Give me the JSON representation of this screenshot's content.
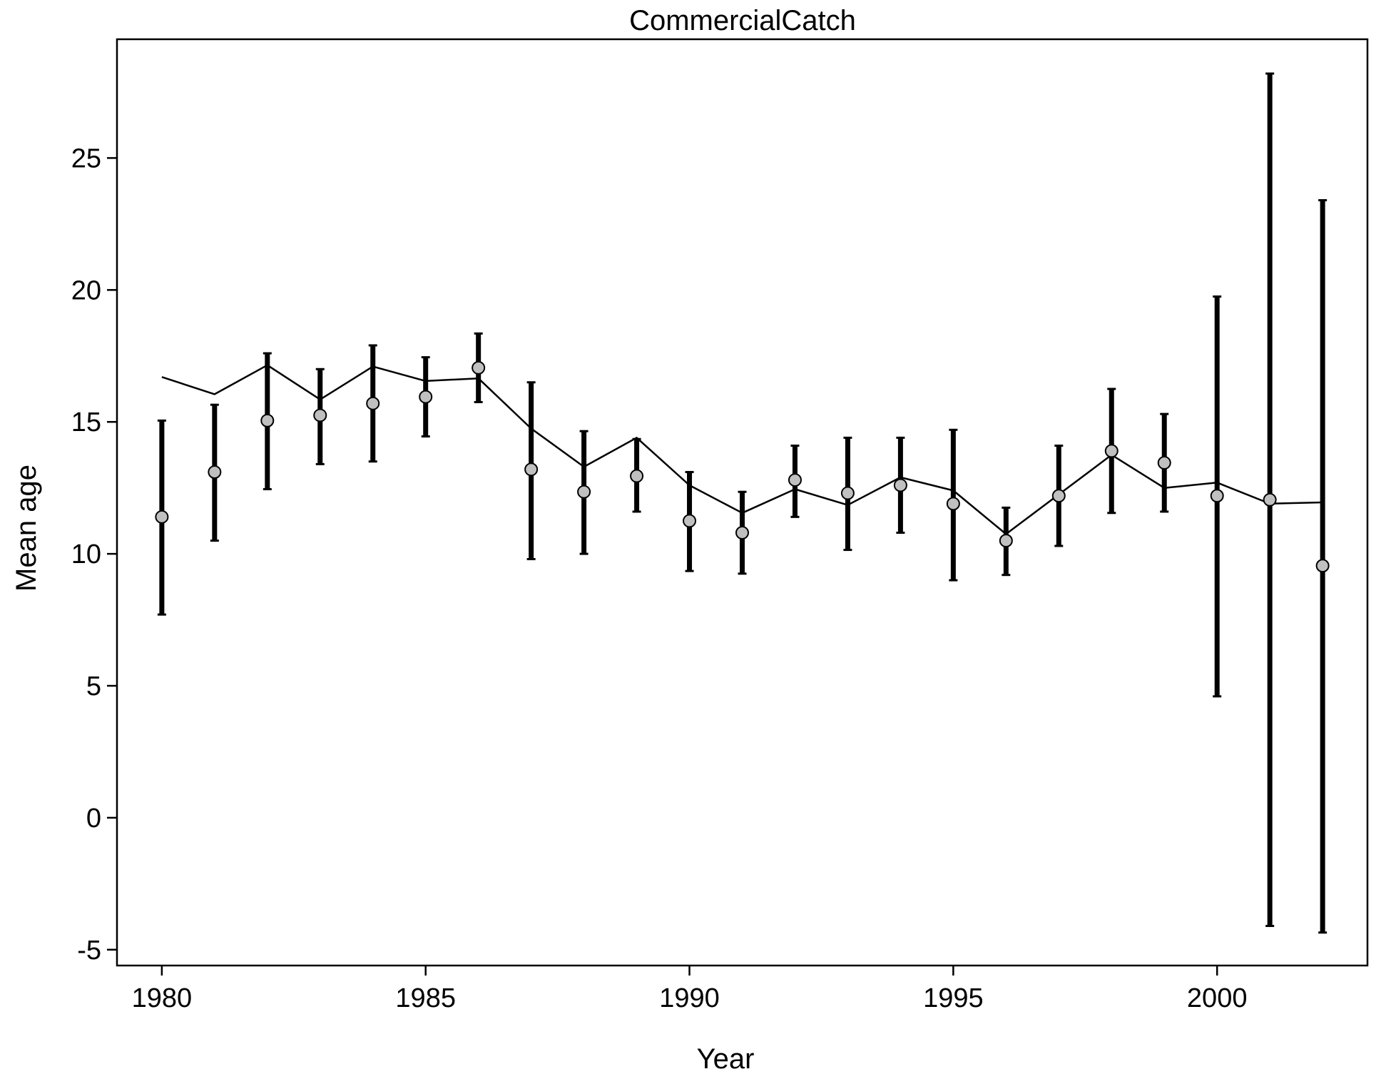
{
  "chart_data": {
    "type": "scatter",
    "title": "CommercialCatch",
    "xlabel": "Year",
    "ylabel": "Mean age",
    "xlim": [
      1979.15,
      2002.85
    ],
    "ylim": [
      -5.6,
      29.5
    ],
    "xticks": [
      1980,
      1985,
      1990,
      1995,
      2000
    ],
    "yticks": [
      -5,
      0,
      5,
      10,
      15,
      20,
      25
    ],
    "grid": false,
    "legend": "none",
    "colors": {
      "line": "#000000",
      "errorbar": "#000000",
      "point_fill": "#c0c0c0",
      "point_stroke": "#000000"
    },
    "series": [
      {
        "kind": "observed-with-errorbars",
        "x": [
          1980,
          1981,
          1982,
          1983,
          1984,
          1985,
          1986,
          1987,
          1988,
          1989,
          1990,
          1991,
          1992,
          1993,
          1994,
          1995,
          1996,
          1997,
          1998,
          1999,
          2000,
          2001,
          2002
        ],
        "y": [
          11.4,
          13.1,
          15.05,
          15.25,
          15.7,
          15.95,
          17.05,
          13.2,
          12.35,
          12.95,
          11.25,
          10.8,
          12.8,
          12.3,
          12.6,
          11.9,
          10.5,
          12.2,
          13.9,
          13.45,
          12.2,
          12.05,
          9.55
        ],
        "lower": [
          7.7,
          10.5,
          12.45,
          13.4,
          13.5,
          14.45,
          15.75,
          9.8,
          10.0,
          11.6,
          9.35,
          9.25,
          11.4,
          10.15,
          10.8,
          9.0,
          9.2,
          10.3,
          11.55,
          11.6,
          4.6,
          -4.1,
          -4.35
        ],
        "upper": [
          15.05,
          15.65,
          17.6,
          17.0,
          17.9,
          17.45,
          18.35,
          16.5,
          14.65,
          14.35,
          13.1,
          12.35,
          14.1,
          14.4,
          14.4,
          14.7,
          11.75,
          14.1,
          16.25,
          15.3,
          19.75,
          28.2,
          23.4
        ]
      },
      {
        "kind": "expected-line",
        "x": [
          1980,
          1981,
          1982,
          1983,
          1984,
          1985,
          1986,
          1987,
          1988,
          1989,
          1990,
          1991,
          1992,
          1993,
          1994,
          1995,
          1996,
          1997,
          1998,
          1999,
          2000,
          2001,
          2002
        ],
        "y": [
          16.7,
          16.05,
          17.15,
          15.85,
          17.1,
          16.55,
          16.65,
          14.75,
          13.3,
          14.4,
          12.6,
          11.55,
          12.45,
          11.85,
          12.9,
          12.4,
          10.75,
          12.25,
          13.75,
          12.5,
          12.7,
          11.9,
          11.95
        ]
      }
    ]
  }
}
